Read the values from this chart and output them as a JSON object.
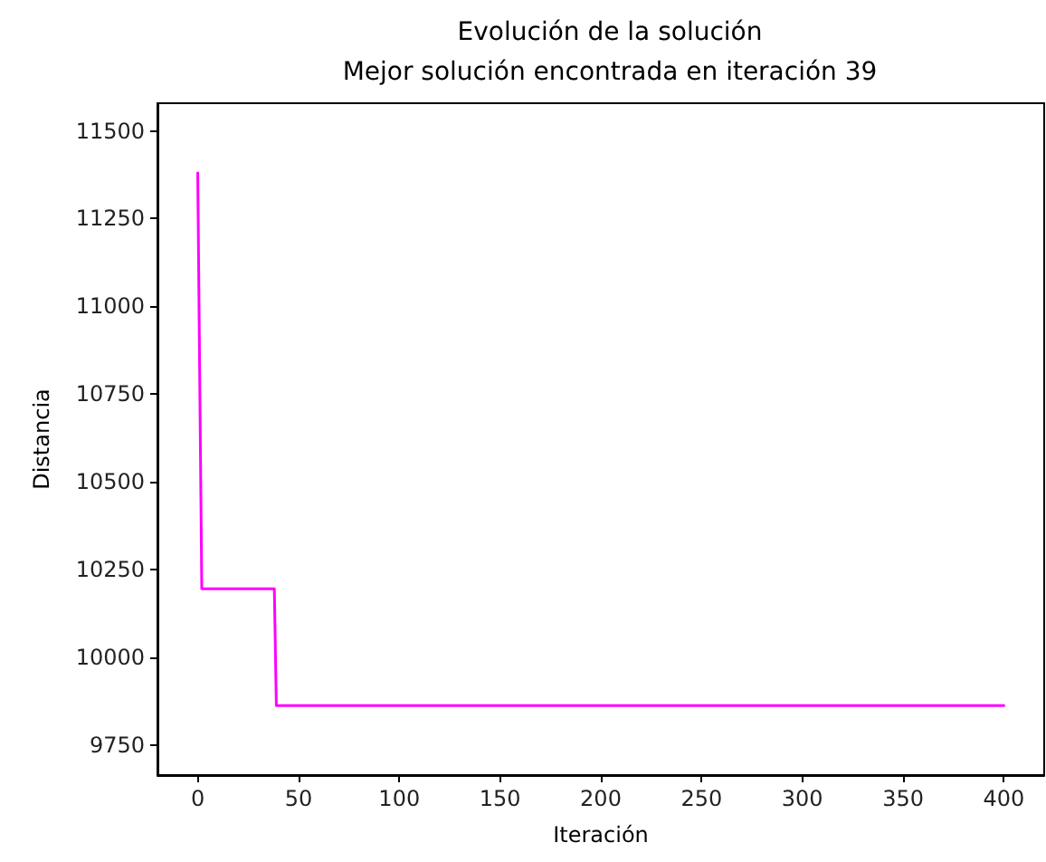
{
  "chart_data": {
    "type": "line",
    "title": "Evolución de la solución",
    "subtitle": "Mejor solución encontrada en iteración 39",
    "xlabel": "Iteración",
    "ylabel": "Distancia",
    "x": [
      0,
      2,
      38,
      39,
      400
    ],
    "series": [
      {
        "color": "#ff00ff",
        "values": [
          11380,
          10195,
          10195,
          9862,
          9862
        ]
      }
    ],
    "xlim": [
      -20,
      420
    ],
    "xticks": [
      0,
      50,
      100,
      150,
      200,
      250,
      300,
      350,
      400
    ],
    "ylim": [
      9664,
      11579
    ],
    "yticks": [
      9750,
      10000,
      10250,
      10500,
      10750,
      11000,
      11250,
      11500
    ],
    "grid": false,
    "marker": "none",
    "line_style": "solid"
  }
}
